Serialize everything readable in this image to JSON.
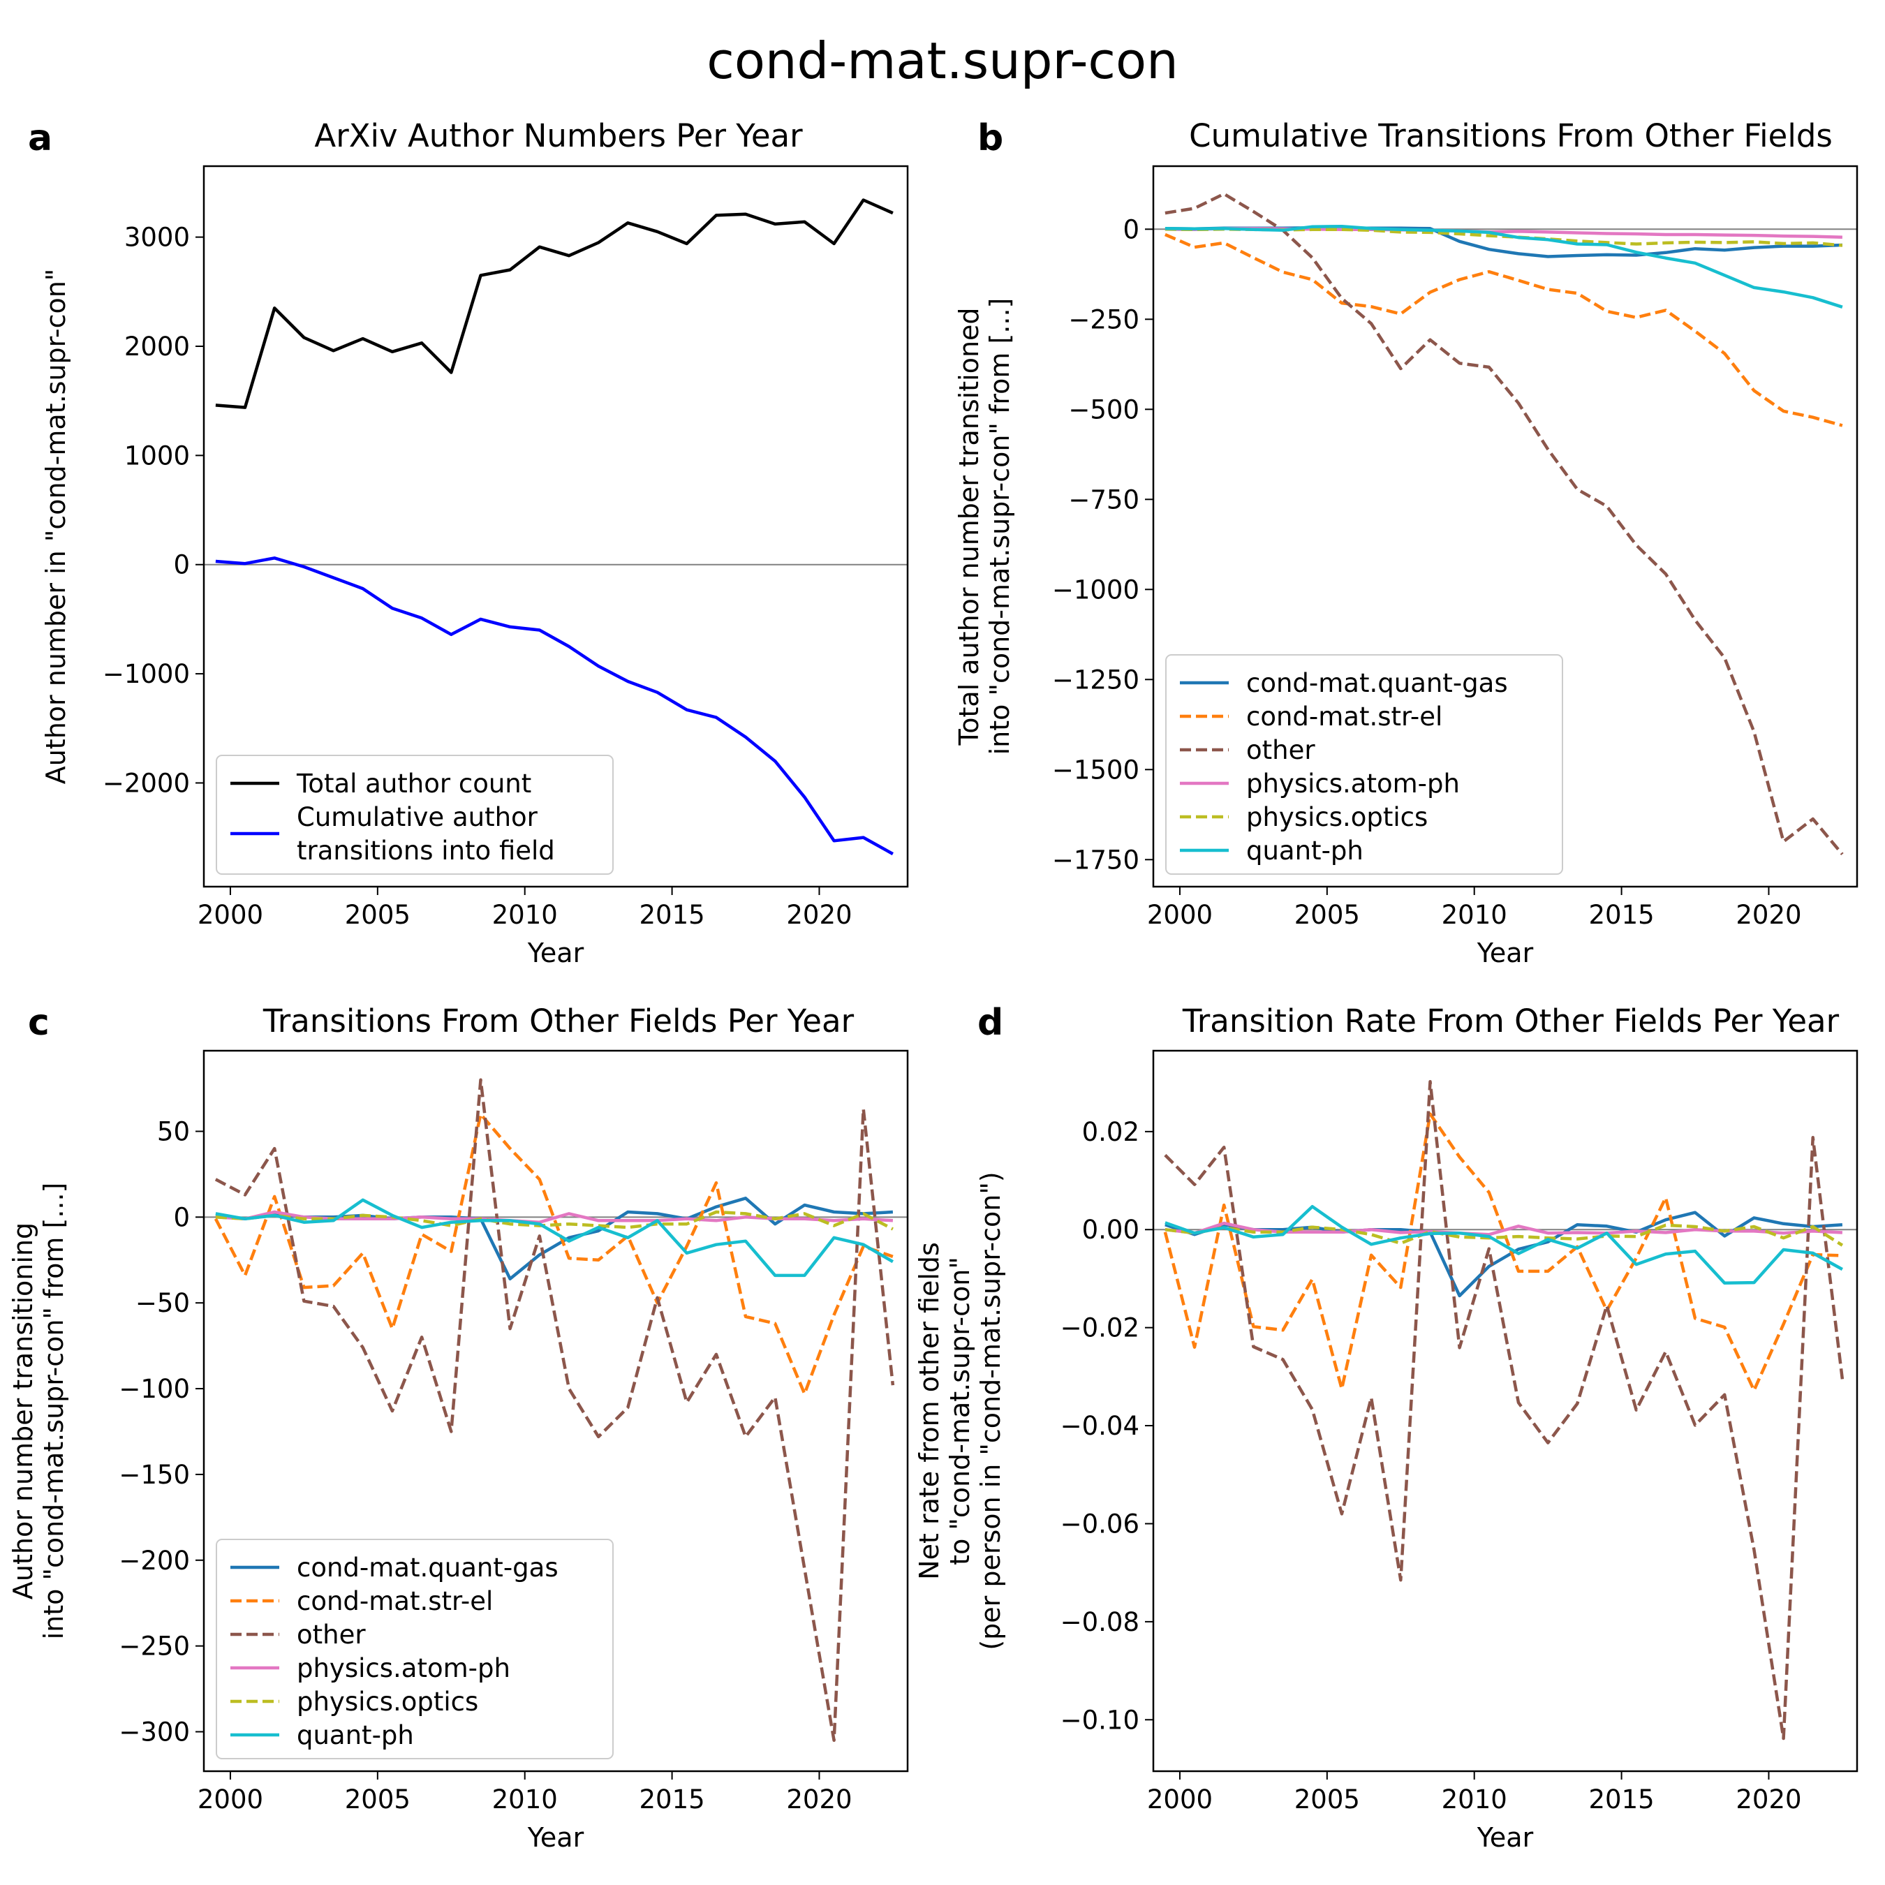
{
  "suptitle": "cond-mat.supr-con",
  "colors": {
    "cond-mat.quant-gas": "#1f77b4",
    "cond-mat.str-el": "#ff7f0e",
    "other": "#8c564b",
    "physics.atom-ph": "#e377c2",
    "physics.optics": "#bcbd22",
    "quant-ph": "#17becf",
    "total": "#000000",
    "cumulative": "#0000ff",
    "zeroline": "#808080"
  },
  "chart_data": [
    {
      "panel": "a",
      "type": "line",
      "title": "ArXiv Author Numbers Per Year",
      "xlabel": "Year",
      "ylabel": "Author number in \"cond-mat.supr-con\"",
      "xlim": [
        1999.1,
        2023.0
      ],
      "ylim": [
        -2950,
        3650
      ],
      "xticks": [
        2000,
        2005,
        2010,
        2015,
        2020
      ],
      "yticks": [
        -2000,
        -1000,
        0,
        1000,
        2000,
        3000
      ],
      "grid": false,
      "legend": "lower-left",
      "x": [
        1999.5,
        2000.5,
        2001.5,
        2002.5,
        2003.5,
        2004.5,
        2005.5,
        2006.5,
        2007.5,
        2008.5,
        2009.5,
        2010.5,
        2011.5,
        2012.5,
        2013.5,
        2014.5,
        2015.5,
        2016.5,
        2017.5,
        2018.5,
        2019.5,
        2020.5,
        2021.5,
        2022.5
      ],
      "series": [
        {
          "name": "Total author count",
          "key": "total",
          "dashed": false,
          "values": [
            1460,
            1440,
            2350,
            2080,
            1960,
            2070,
            1950,
            2030,
            1760,
            2650,
            2700,
            2910,
            2830,
            2950,
            3130,
            3050,
            2940,
            3200,
            3210,
            3120,
            3140,
            2940,
            3340,
            3220
          ]
        },
        {
          "name": "Cumulative author\ntransitions into field",
          "key": "cumulative",
          "dashed": false,
          "values": [
            30,
            10,
            60,
            -20,
            -120,
            -220,
            -400,
            -490,
            -640,
            -500,
            -570,
            -600,
            -750,
            -930,
            -1070,
            -1170,
            -1330,
            -1400,
            -1580,
            -1800,
            -2130,
            -2530,
            -2500,
            -2650
          ]
        }
      ]
    },
    {
      "panel": "b",
      "type": "line",
      "title": "Cumulative Transitions From Other Fields",
      "xlabel": "Year",
      "ylabel": "Total author number transitioned\ninto \"cond-mat.supr-con\" from [...]",
      "xlim": [
        1999.1,
        2023.0
      ],
      "ylim": [
        -1825,
        175
      ],
      "xticks": [
        2000,
        2005,
        2010,
        2015,
        2020
      ],
      "yticks": [
        0,
        -250,
        -500,
        -750,
        -1000,
        -1250,
        -1500,
        -1750
      ],
      "grid": false,
      "legend": "lower-left",
      "x": [
        1999.5,
        2000.5,
        2001.5,
        2002.5,
        2003.5,
        2004.5,
        2005.5,
        2006.5,
        2007.5,
        2008.5,
        2009.5,
        2010.5,
        2011.5,
        2012.5,
        2013.5,
        2014.5,
        2015.5,
        2016.5,
        2017.5,
        2018.5,
        2019.5,
        2020.5,
        2021.5,
        2022.5
      ],
      "series": [
        {
          "name": "cond-mat.quant-gas",
          "key": "cond-mat.quant-gas",
          "dashed": false,
          "values": [
            2,
            1,
            3,
            3,
            3,
            4,
            3,
            3,
            3,
            2,
            -34,
            -56,
            -68,
            -76,
            -73,
            -71,
            -72,
            -65,
            -54,
            -58,
            -51,
            -47,
            -47,
            -44
          ]
        },
        {
          "name": "cond-mat.str-el",
          "key": "cond-mat.str-el",
          "dashed": true,
          "values": [
            -15,
            -50,
            -38,
            -79,
            -119,
            -140,
            -205,
            -215,
            -235,
            -175,
            -140,
            -118,
            -142,
            -167,
            -178,
            -228,
            -245,
            -225,
            -283,
            -345,
            -448,
            -505,
            -522,
            -545
          ]
        },
        {
          "name": "other",
          "key": "other",
          "dashed": true,
          "values": [
            45,
            58,
            98,
            49,
            -3,
            -79,
            -192,
            -262,
            -387,
            -307,
            -372,
            -383,
            -483,
            -611,
            -722,
            -769,
            -877,
            -957,
            -1085,
            -1190,
            -1395,
            -1700,
            -1637,
            -1735
          ]
        },
        {
          "name": "physics.atom-ph",
          "key": "physics.atom-ph",
          "dashed": false,
          "values": [
            0,
            -1,
            2,
            2,
            1,
            0,
            -1,
            -1,
            -2,
            -3,
            -5,
            -8,
            -6,
            -8,
            -10,
            -12,
            -13,
            -15,
            -15,
            -16,
            -17,
            -19,
            -20,
            -22
          ]
        },
        {
          "name": "physics.optics",
          "key": "physics.optics",
          "dashed": true,
          "values": [
            0,
            -1,
            0,
            -1,
            -2,
            -1,
            -1,
            -3,
            -8,
            -9,
            -13,
            -18,
            -22,
            -27,
            -33,
            -37,
            -41,
            -38,
            -36,
            -37,
            -35,
            -40,
            -38,
            -45
          ]
        },
        {
          "name": "quant-ph",
          "key": "quant-ph",
          "dashed": false,
          "values": [
            2,
            1,
            2,
            -1,
            -3,
            7,
            8,
            2,
            -1,
            -3,
            -5,
            -9,
            -23,
            -29,
            -41,
            -43,
            -64,
            -80,
            -94,
            -128,
            -162,
            -174,
            -190,
            -216
          ]
        }
      ]
    },
    {
      "panel": "c",
      "type": "line",
      "title": "Transitions From Other Fields Per Year",
      "xlabel": "Year",
      "ylabel": "Author number transitioning\ninto \"cond-mat.supr-con\" from [...]",
      "xlim": [
        1999.1,
        2023.0
      ],
      "ylim": [
        -323,
        97
      ],
      "xticks": [
        2000,
        2005,
        2010,
        2015,
        2020
      ],
      "yticks": [
        50,
        0,
        -50,
        -100,
        -150,
        -200,
        -250,
        -300
      ],
      "grid": false,
      "legend": "lower-left",
      "x": [
        1999.5,
        2000.5,
        2001.5,
        2002.5,
        2003.5,
        2004.5,
        2005.5,
        2006.5,
        2007.5,
        2008.5,
        2009.5,
        2010.5,
        2011.5,
        2012.5,
        2013.5,
        2014.5,
        2015.5,
        2016.5,
        2017.5,
        2018.5,
        2019.5,
        2020.5,
        2021.5,
        2022.5
      ],
      "series": [
        {
          "name": "cond-mat.quant-gas",
          "key": "cond-mat.quant-gas",
          "dashed": false,
          "values": [
            1,
            -1,
            2,
            0,
            0,
            1,
            -1,
            0,
            0,
            -1,
            -36,
            -22,
            -12,
            -8,
            3,
            2,
            -1,
            6,
            11,
            -4,
            7,
            3,
            2,
            3
          ]
        },
        {
          "name": "cond-mat.str-el",
          "key": "cond-mat.str-el",
          "dashed": true,
          "values": [
            -1,
            -34,
            12,
            -41,
            -40,
            -21,
            -65,
            -10,
            -20,
            60,
            40,
            22,
            -24,
            -25,
            -11,
            -50,
            -17,
            20,
            -58,
            -62,
            -103,
            -57,
            -17,
            -23
          ]
        },
        {
          "name": "other",
          "key": "other",
          "dashed": true,
          "values": [
            22,
            13,
            40,
            -49,
            -52,
            -76,
            -113,
            -70,
            -125,
            80,
            -65,
            -11,
            -100,
            -128,
            -111,
            -47,
            -108,
            -80,
            -128,
            -105,
            -205,
            -305,
            63,
            -98
          ]
        },
        {
          "name": "physics.atom-ph",
          "key": "physics.atom-ph",
          "dashed": false,
          "values": [
            0,
            -1,
            3,
            0,
            -1,
            -1,
            -1,
            0,
            -1,
            -1,
            -2,
            -3,
            2,
            -2,
            -2,
            -2,
            -1,
            -2,
            0,
            -1,
            -1,
            -2,
            -1,
            -2
          ]
        },
        {
          "name": "physics.optics",
          "key": "physics.optics",
          "dashed": true,
          "values": [
            0,
            -1,
            1,
            -1,
            -1,
            1,
            0,
            -2,
            -5,
            -1,
            -4,
            -5,
            -4,
            -5,
            -6,
            -4,
            -4,
            3,
            2,
            -1,
            2,
            -5,
            2,
            -7
          ]
        },
        {
          "name": "quant-ph",
          "key": "quant-ph",
          "dashed": false,
          "values": [
            2,
            -1,
            1,
            -3,
            -2,
            10,
            1,
            -6,
            -3,
            -2,
            -2,
            -4,
            -14,
            -6,
            -12,
            -2,
            -21,
            -16,
            -14,
            -34,
            -34,
            -12,
            -16,
            -26
          ]
        }
      ]
    },
    {
      "panel": "d",
      "type": "line",
      "title": "Transition Rate From Other Fields Per Year",
      "xlabel": "Year",
      "ylabel": "Net rate from other fields\nto \"cond-mat.supr-con\"\n(per person in \"cond-mat.supr-con\")",
      "xlim": [
        1999.1,
        2023.0
      ],
      "ylim": [
        -0.1105,
        0.0365
      ],
      "xticks": [
        2000,
        2005,
        2010,
        2015,
        2020
      ],
      "yticks": [
        0.02,
        0.0,
        -0.02,
        -0.04,
        -0.06,
        -0.08,
        -0.1
      ],
      "ytick_labels": [
        "0.02",
        "0.00",
        "−0.02",
        "−0.04",
        "−0.06",
        "−0.08",
        "−0.10"
      ],
      "grid": false,
      "legend": "none",
      "x": [
        1999.5,
        2000.5,
        2001.5,
        2002.5,
        2003.5,
        2004.5,
        2005.5,
        2006.5,
        2007.5,
        2008.5,
        2009.5,
        2010.5,
        2011.5,
        2012.5,
        2013.5,
        2014.5,
        2015.5,
        2016.5,
        2017.5,
        2018.5,
        2019.5,
        2020.5,
        2021.5,
        2022.5
      ],
      "series": [
        {
          "name": "cond-mat.quant-gas",
          "key": "cond-mat.quant-gas",
          "dashed": false,
          "values": [
            0.001,
            -0.001,
            0.001,
            0.0,
            0.0,
            0.0005,
            -0.0005,
            0.0,
            0.0,
            -0.0005,
            -0.0135,
            -0.0075,
            -0.004,
            -0.0025,
            0.001,
            0.0007,
            -0.0005,
            0.002,
            0.0035,
            -0.0013,
            0.0024,
            0.0012,
            0.0006,
            0.001
          ]
        },
        {
          "name": "cond-mat.str-el",
          "key": "cond-mat.str-el",
          "dashed": true,
          "values": [
            -0.0005,
            -0.024,
            0.005,
            -0.0198,
            -0.0205,
            -0.0101,
            -0.0325,
            -0.0052,
            -0.0118,
            0.0236,
            0.0148,
            0.0076,
            -0.0085,
            -0.0085,
            -0.0035,
            -0.0165,
            -0.0058,
            0.0065,
            -0.0181,
            -0.0199,
            -0.0328,
            -0.0193,
            -0.0051,
            -0.0053
          ]
        },
        {
          "name": "other",
          "key": "other",
          "dashed": true,
          "values": [
            0.0152,
            0.0092,
            0.0168,
            -0.0239,
            -0.0265,
            -0.0367,
            -0.058,
            -0.0343,
            -0.0715,
            0.0302,
            -0.0241,
            -0.0039,
            -0.0353,
            -0.0435,
            -0.0355,
            -0.0155,
            -0.0368,
            -0.0249,
            -0.0399,
            -0.0337,
            -0.0653,
            -0.1038,
            0.0188,
            -0.0305
          ]
        },
        {
          "name": "physics.atom-ph",
          "key": "physics.atom-ph",
          "dashed": false,
          "values": [
            0.0,
            -0.0007,
            0.0013,
            0.0,
            -0.0005,
            -0.0005,
            -0.0005,
            0.0,
            -0.0006,
            -0.0004,
            -0.0007,
            -0.001,
            0.0007,
            -0.0007,
            -0.0006,
            -0.0007,
            -0.0003,
            -0.0006,
            0.0,
            -0.0003,
            -0.0003,
            -0.0007,
            -0.0003,
            -0.0006
          ]
        },
        {
          "name": "physics.optics",
          "key": "physics.optics",
          "dashed": true,
          "values": [
            0.0,
            -0.0007,
            0.0004,
            -0.0005,
            -0.0005,
            0.0005,
            0.0,
            -0.001,
            -0.0028,
            -0.0004,
            -0.0015,
            -0.0017,
            -0.0014,
            -0.0017,
            -0.0019,
            -0.0013,
            -0.0014,
            0.0009,
            0.0006,
            -0.0003,
            0.0006,
            -0.0017,
            0.0006,
            -0.0032
          ]
        },
        {
          "name": "quant-ph",
          "key": "quant-ph",
          "dashed": false,
          "values": [
            0.0014,
            -0.0007,
            0.0004,
            -0.0015,
            -0.001,
            0.0047,
            0.0005,
            -0.003,
            -0.0017,
            -0.0008,
            -0.0007,
            -0.0014,
            -0.0049,
            -0.002,
            -0.0038,
            -0.0007,
            -0.0071,
            -0.005,
            -0.0044,
            -0.0109,
            -0.0108,
            -0.0041,
            -0.0048,
            -0.0081
          ]
        }
      ]
    }
  ]
}
